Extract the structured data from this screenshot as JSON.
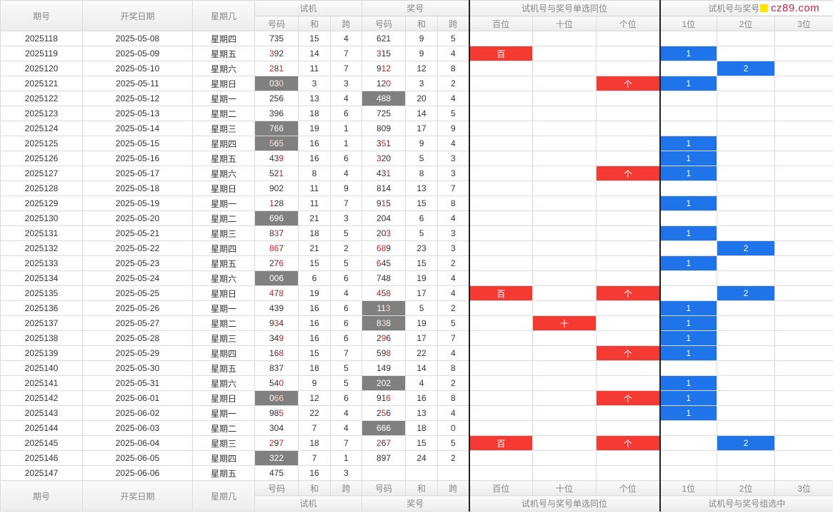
{
  "header": {
    "issue": "期号",
    "date": "开奖日期",
    "weekday": "星期几",
    "group_test": "试机",
    "group_prize": "奖号",
    "group_same_pos": "试机号与奖号单选同位",
    "group_combo": "试机号与奖号组选中",
    "col_code": "号码",
    "col_sum": "和",
    "col_span": "跨",
    "pos_hundred": "百位",
    "pos_ten": "十位",
    "pos_unit": "个位",
    "combo_1": "1位",
    "combo_2": "2位",
    "combo_3": "3位"
  },
  "logo": {
    "text": "cz89.com",
    "accent": "#ffe400"
  },
  "colors": {
    "red_mark": "#f43a32",
    "blue_mark": "#1e74e8",
    "gray_cell": "#808080",
    "digit_red": "#e02020"
  },
  "rows": [
    {
      "issue": "2025118",
      "date": "2025-05-08",
      "weekday": "星期四",
      "t": "735",
      "ts": "15",
      "tk": "4",
      "p": "621",
      "ps": "9",
      "pk": "5",
      "hi_t": [],
      "hi_p": []
    },
    {
      "issue": "2025119",
      "date": "2025-05-09",
      "weekday": "星期五",
      "t": "392",
      "ts": "14",
      "tk": "7",
      "p": "315",
      "ps": "9",
      "pk": "4",
      "hi_t": [
        0
      ],
      "hi_p": [
        0
      ],
      "bai": "百",
      "c1": "1"
    },
    {
      "issue": "2025120",
      "date": "2025-05-10",
      "weekday": "星期六",
      "t": "281",
      "ts": "11",
      "tk": "7",
      "p": "912",
      "ps": "12",
      "pk": "8",
      "hi_t": [
        0,
        2
      ],
      "hi_p": [
        1,
        2
      ],
      "c2": "2"
    },
    {
      "issue": "2025121",
      "date": "2025-05-11",
      "weekday": "星期日",
      "t": "030",
      "ts": "3",
      "tk": "3",
      "p": "120",
      "ps": "3",
      "pk": "2",
      "hi_t": [
        2
      ],
      "hi_p": [
        2
      ],
      "gray_t": true,
      "ge": "个",
      "c1": "1"
    },
    {
      "issue": "2025122",
      "date": "2025-05-12",
      "weekday": "星期一",
      "t": "256",
      "ts": "13",
      "tk": "4",
      "p": "488",
      "ps": "20",
      "pk": "4",
      "hi_t": [],
      "hi_p": [],
      "gray_p": true
    },
    {
      "issue": "2025123",
      "date": "2025-05-13",
      "weekday": "星期二",
      "t": "396",
      "ts": "18",
      "tk": "6",
      "p": "725",
      "ps": "14",
      "pk": "5",
      "hi_t": [],
      "hi_p": []
    },
    {
      "issue": "2025124",
      "date": "2025-05-14",
      "weekday": "星期三",
      "t": "766",
      "ts": "19",
      "tk": "1",
      "p": "809",
      "ps": "17",
      "pk": "9",
      "hi_t": [],
      "hi_p": [],
      "gray_t": true
    },
    {
      "issue": "2025125",
      "date": "2025-05-15",
      "weekday": "星期四",
      "t": "565",
      "ts": "16",
      "tk": "1",
      "p": "351",
      "ps": "9",
      "pk": "4",
      "hi_t": [
        0,
        2
      ],
      "hi_p": [
        1
      ],
      "gray_t": true,
      "c1": "1"
    },
    {
      "issue": "2025126",
      "date": "2025-05-16",
      "weekday": "星期五",
      "t": "439",
      "ts": "16",
      "tk": "6",
      "p": "320",
      "ps": "5",
      "pk": "3",
      "hi_t": [
        2
      ],
      "hi_p": [
        0
      ],
      "c1": "1"
    },
    {
      "issue": "2025127",
      "date": "2025-05-17",
      "weekday": "星期六",
      "t": "521",
      "ts": "8",
      "tk": "4",
      "p": "431",
      "ps": "8",
      "pk": "3",
      "hi_t": [
        2
      ],
      "hi_p": [
        2
      ],
      "ge": "个",
      "c1": "1"
    },
    {
      "issue": "2025128",
      "date": "2025-05-18",
      "weekday": "星期日",
      "t": "902",
      "ts": "11",
      "tk": "9",
      "p": "814",
      "ps": "13",
      "pk": "7",
      "hi_t": [],
      "hi_p": []
    },
    {
      "issue": "2025129",
      "date": "2025-05-19",
      "weekday": "星期一",
      "t": "128",
      "ts": "11",
      "tk": "7",
      "p": "915",
      "ps": "15",
      "pk": "8",
      "hi_t": [
        0
      ],
      "hi_p": [
        1
      ],
      "c1": "1"
    },
    {
      "issue": "2025130",
      "date": "2025-05-20",
      "weekday": "星期二",
      "t": "696",
      "ts": "21",
      "tk": "3",
      "p": "204",
      "ps": "6",
      "pk": "4",
      "hi_t": [],
      "hi_p": [],
      "gray_t": true
    },
    {
      "issue": "2025131",
      "date": "2025-05-21",
      "weekday": "星期三",
      "t": "837",
      "ts": "18",
      "tk": "5",
      "p": "203",
      "ps": "5",
      "pk": "3",
      "hi_t": [
        1
      ],
      "hi_p": [
        2
      ],
      "c1": "1"
    },
    {
      "issue": "2025132",
      "date": "2025-05-22",
      "weekday": "星期四",
      "t": "867",
      "ts": "21",
      "tk": "2",
      "p": "689",
      "ps": "23",
      "pk": "3",
      "hi_t": [
        0,
        1
      ],
      "hi_p": [
        0,
        1
      ],
      "c2": "2"
    },
    {
      "issue": "2025133",
      "date": "2025-05-23",
      "weekday": "星期五",
      "t": "276",
      "ts": "15",
      "tk": "5",
      "p": "645",
      "ps": "15",
      "pk": "2",
      "hi_t": [
        2
      ],
      "hi_p": [
        0
      ],
      "c1": "1"
    },
    {
      "issue": "2025134",
      "date": "2025-05-24",
      "weekday": "星期六",
      "t": "006",
      "ts": "6",
      "tk": "6",
      "p": "748",
      "ps": "19",
      "pk": "4",
      "hi_t": [],
      "hi_p": [],
      "gray_t": true
    },
    {
      "issue": "2025135",
      "date": "2025-05-25",
      "weekday": "星期日",
      "t": "478",
      "ts": "19",
      "tk": "4",
      "p": "458",
      "ps": "17",
      "pk": "4",
      "hi_t": [
        0,
        2
      ],
      "hi_p": [
        0,
        2
      ],
      "bai": "百",
      "ge": "个",
      "c2": "2"
    },
    {
      "issue": "2025136",
      "date": "2025-05-26",
      "weekday": "星期一",
      "t": "439",
      "ts": "16",
      "tk": "6",
      "p": "113",
      "ps": "5",
      "pk": "2",
      "hi_t": [],
      "hi_p": [
        2
      ],
      "gray_p": true,
      "c1": "1"
    },
    {
      "issue": "2025137",
      "date": "2025-05-27",
      "weekday": "星期二",
      "t": "934",
      "ts": "16",
      "tk": "6",
      "p": "838",
      "ps": "19",
      "pk": "5",
      "hi_t": [
        1
      ],
      "hi_p": [
        1
      ],
      "gray_p": true,
      "shi": "十",
      "c1": "1"
    },
    {
      "issue": "2025138",
      "date": "2025-05-28",
      "weekday": "星期三",
      "t": "349",
      "ts": "16",
      "tk": "6",
      "p": "296",
      "ps": "17",
      "pk": "7",
      "hi_t": [
        2
      ],
      "hi_p": [
        1
      ],
      "c1": "1"
    },
    {
      "issue": "2025139",
      "date": "2025-05-29",
      "weekday": "星期四",
      "t": "168",
      "ts": "15",
      "tk": "7",
      "p": "598",
      "ps": "22",
      "pk": "4",
      "hi_t": [
        2
      ],
      "hi_p": [
        2
      ],
      "ge": "个",
      "c1": "1"
    },
    {
      "issue": "2025140",
      "date": "2025-05-30",
      "weekday": "星期五",
      "t": "837",
      "ts": "18",
      "tk": "5",
      "p": "149",
      "ps": "14",
      "pk": "8",
      "hi_t": [],
      "hi_p": []
    },
    {
      "issue": "2025141",
      "date": "2025-05-31",
      "weekday": "星期六",
      "t": "540",
      "ts": "9",
      "tk": "5",
      "p": "202",
      "ps": "4",
      "pk": "2",
      "hi_t": [
        2
      ],
      "hi_p": [],
      "gray_p": true,
      "c1": "1"
    },
    {
      "issue": "2025142",
      "date": "2025-06-01",
      "weekday": "星期日",
      "t": "066",
      "ts": "12",
      "tk": "6",
      "p": "916",
      "ps": "16",
      "pk": "8",
      "hi_t": [
        1,
        2
      ],
      "hi_p": [
        2
      ],
      "gray_t": true,
      "ge": "个",
      "c1": "1"
    },
    {
      "issue": "2025143",
      "date": "2025-06-02",
      "weekday": "星期一",
      "t": "985",
      "ts": "22",
      "tk": "4",
      "p": "256",
      "ps": "13",
      "pk": "4",
      "hi_t": [
        2
      ],
      "hi_p": [
        1
      ],
      "c1": "1"
    },
    {
      "issue": "2025144",
      "date": "2025-06-03",
      "weekday": "星期二",
      "t": "304",
      "ts": "7",
      "tk": "4",
      "p": "666",
      "ps": "18",
      "pk": "0",
      "hi_t": [],
      "hi_p": [],
      "gray_p": true
    },
    {
      "issue": "2025145",
      "date": "2025-06-04",
      "weekday": "星期三",
      "t": "297",
      "ts": "18",
      "tk": "7",
      "p": "267",
      "ps": "15",
      "pk": "5",
      "hi_t": [
        0,
        2
      ],
      "hi_p": [
        0,
        2
      ],
      "bai": "百",
      "ge": "个",
      "c2": "2"
    },
    {
      "issue": "2025146",
      "date": "2025-06-05",
      "weekday": "星期四",
      "t": "322",
      "ts": "7",
      "tk": "1",
      "p": "897",
      "ps": "24",
      "pk": "2",
      "hi_t": [],
      "hi_p": [],
      "gray_t": true
    },
    {
      "issue": "2025147",
      "date": "2025-06-06",
      "weekday": "星期五",
      "t": "475",
      "ts": "16",
      "tk": "3",
      "p": "",
      "ps": "",
      "pk": "",
      "hi_t": [],
      "hi_p": []
    }
  ]
}
